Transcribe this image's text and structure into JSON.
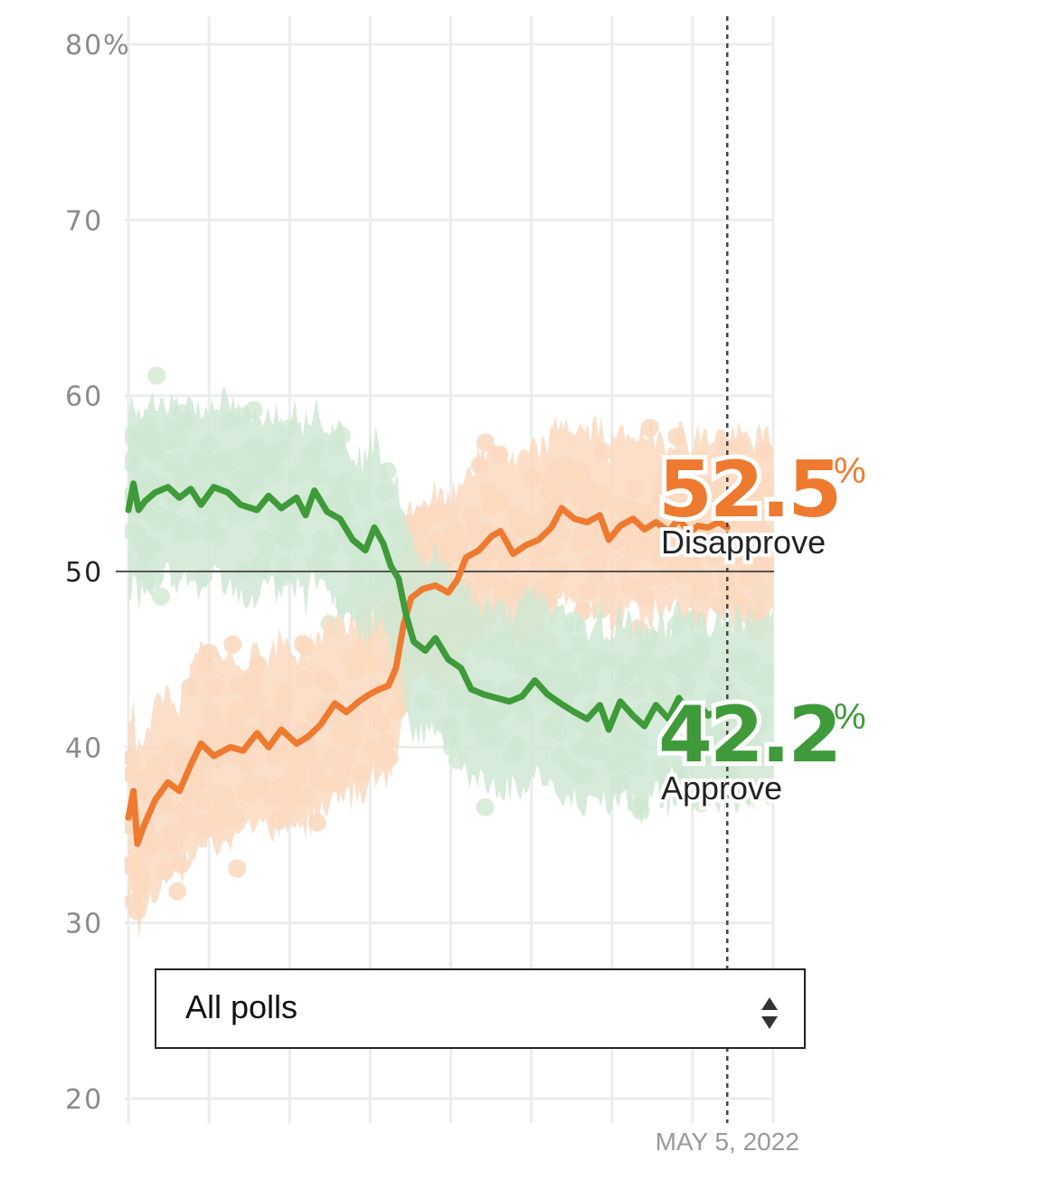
{
  "chart_data": {
    "type": "line",
    "y_ticks": [
      "80%",
      "70",
      "60",
      "50",
      "40",
      "30",
      "20"
    ],
    "ylim": [
      20,
      80
    ],
    "x_range": [
      "2021-01-20",
      "2022-06-10"
    ],
    "reference_line": 50,
    "current_date_label": "MAY 5, 2022",
    "current_date": "2022-05-05",
    "grid": true,
    "series": [
      {
        "name": "Disapprove",
        "color": "#ee7a30",
        "band_color": "#fad9bf",
        "dot_color": "#f9d8be",
        "current_value": "52.5",
        "points": [
          [
            "2021-01-20",
            36
          ],
          [
            "2021-01-24",
            37.5
          ],
          [
            "2021-01-27",
            34.5
          ],
          [
            "2021-02-01",
            35.5
          ],
          [
            "2021-02-10",
            37
          ],
          [
            "2021-02-20",
            38
          ],
          [
            "2021-03-01",
            37.5
          ],
          [
            "2021-03-10",
            39
          ],
          [
            "2021-03-18",
            40.2
          ],
          [
            "2021-03-28",
            39.5
          ],
          [
            "2021-04-10",
            40
          ],
          [
            "2021-04-20",
            39.8
          ],
          [
            "2021-05-01",
            40.8
          ],
          [
            "2021-05-10",
            40
          ],
          [
            "2021-05-20",
            41
          ],
          [
            "2021-06-01",
            40.2
          ],
          [
            "2021-06-10",
            40.6
          ],
          [
            "2021-06-20",
            41.3
          ],
          [
            "2021-07-01",
            42.5
          ],
          [
            "2021-07-10",
            42
          ],
          [
            "2021-07-20",
            42.6
          ],
          [
            "2021-07-28",
            43
          ],
          [
            "2021-08-05",
            43.3
          ],
          [
            "2021-08-12",
            43.5
          ],
          [
            "2021-08-18",
            44.5
          ],
          [
            "2021-08-24",
            47
          ],
          [
            "2021-08-30",
            48.5
          ],
          [
            "2021-09-08",
            49
          ],
          [
            "2021-09-18",
            49.2
          ],
          [
            "2021-09-28",
            48.8
          ],
          [
            "2021-10-05",
            49.5
          ],
          [
            "2021-10-12",
            50.8
          ],
          [
            "2021-10-22",
            51.2
          ],
          [
            "2021-11-01",
            52
          ],
          [
            "2021-11-08",
            52.3
          ],
          [
            "2021-11-18",
            51
          ],
          [
            "2021-11-28",
            51.5
          ],
          [
            "2021-12-08",
            51.8
          ],
          [
            "2021-12-18",
            52.5
          ],
          [
            "2021-12-26",
            53.6
          ],
          [
            "2022-01-05",
            53
          ],
          [
            "2022-01-15",
            52.8
          ],
          [
            "2022-01-25",
            53.2
          ],
          [
            "2022-02-01",
            51.8
          ],
          [
            "2022-02-10",
            52.6
          ],
          [
            "2022-02-20",
            53
          ],
          [
            "2022-03-01",
            52.4
          ],
          [
            "2022-03-10",
            52.8
          ],
          [
            "2022-03-20",
            52.3
          ],
          [
            "2022-03-28",
            53
          ],
          [
            "2022-04-05",
            52.2
          ],
          [
            "2022-04-12",
            52.6
          ],
          [
            "2022-04-20",
            52.5
          ],
          [
            "2022-04-28",
            52.8
          ],
          [
            "2022-05-05",
            52.5
          ]
        ]
      },
      {
        "name": "Approve",
        "color": "#3f9a3a",
        "band_color": "#cfe8d2",
        "dot_color": "#d3ead5",
        "current_value": "42.2",
        "points": [
          [
            "2021-01-20",
            53.5
          ],
          [
            "2021-01-24",
            55
          ],
          [
            "2021-01-28",
            53.5
          ],
          [
            "2021-02-02",
            54
          ],
          [
            "2021-02-10",
            54.5
          ],
          [
            "2021-02-20",
            54.8
          ],
          [
            "2021-03-01",
            54.2
          ],
          [
            "2021-03-10",
            54.7
          ],
          [
            "2021-03-18",
            53.8
          ],
          [
            "2021-03-28",
            54.8
          ],
          [
            "2021-04-08",
            54.5
          ],
          [
            "2021-04-18",
            53.8
          ],
          [
            "2021-05-01",
            53.5
          ],
          [
            "2021-05-10",
            54.3
          ],
          [
            "2021-05-20",
            53.6
          ],
          [
            "2021-06-01",
            54.2
          ],
          [
            "2021-06-08",
            53.2
          ],
          [
            "2021-06-15",
            54.6
          ],
          [
            "2021-06-25",
            53.4
          ],
          [
            "2021-07-05",
            53
          ],
          [
            "2021-07-15",
            51.8
          ],
          [
            "2021-07-25",
            51.2
          ],
          [
            "2021-08-01",
            52.5
          ],
          [
            "2021-08-08",
            51.6
          ],
          [
            "2021-08-14",
            50.3
          ],
          [
            "2021-08-20",
            49.6
          ],
          [
            "2021-08-26",
            47.5
          ],
          [
            "2021-09-01",
            46
          ],
          [
            "2021-09-10",
            45.5
          ],
          [
            "2021-09-18",
            46.2
          ],
          [
            "2021-09-28",
            45
          ],
          [
            "2021-10-08",
            44.5
          ],
          [
            "2021-10-16",
            43.3
          ],
          [
            "2021-10-26",
            43
          ],
          [
            "2021-11-05",
            42.8
          ],
          [
            "2021-11-15",
            42.6
          ],
          [
            "2021-11-25",
            42.9
          ],
          [
            "2021-12-05",
            43.8
          ],
          [
            "2021-12-15",
            43
          ],
          [
            "2021-12-25",
            42.5
          ],
          [
            "2022-01-05",
            42
          ],
          [
            "2022-01-15",
            41.6
          ],
          [
            "2022-01-25",
            42.4
          ],
          [
            "2022-02-01",
            41
          ],
          [
            "2022-02-10",
            42.6
          ],
          [
            "2022-02-20",
            41.8
          ],
          [
            "2022-03-01",
            41.2
          ],
          [
            "2022-03-10",
            42.4
          ],
          [
            "2022-03-20",
            41.6
          ],
          [
            "2022-03-28",
            42.8
          ],
          [
            "2022-04-05",
            41.9
          ],
          [
            "2022-04-12",
            42.5
          ],
          [
            "2022-04-20",
            41.8
          ],
          [
            "2022-04-28",
            42.1
          ],
          [
            "2022-05-05",
            42.2
          ]
        ]
      }
    ]
  },
  "selector": {
    "label": "All polls"
  }
}
